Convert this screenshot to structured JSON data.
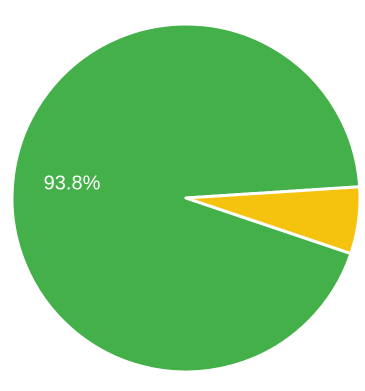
{
  "chart_data": {
    "type": "pie",
    "categories": [
      "",
      ""
    ],
    "values": [
      93.8,
      6.2
    ],
    "slice_labels": [
      "93.8%",
      ""
    ],
    "colors": [
      "#43b04a",
      "#f5c20d"
    ],
    "separator_color": "#ffffff",
    "start": "right",
    "direction": "counterclockwise"
  }
}
